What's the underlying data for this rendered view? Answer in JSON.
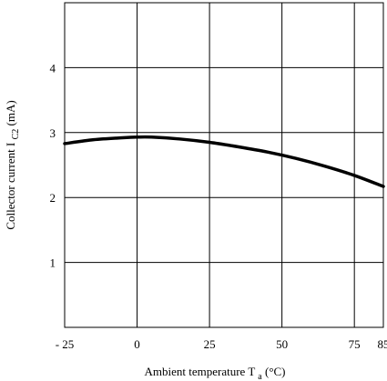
{
  "chart_data": {
    "type": "line",
    "title": "",
    "xlabel": "Ambient temperature T",
    "xlabel_sub": "a",
    "xlabel_unit": "(°C)",
    "ylabel": "Collector current I",
    "ylabel_sub": "C2",
    "ylabel_unit": "(mA)",
    "xlim": [
      -25,
      85
    ],
    "ylim": [
      0,
      5
    ],
    "grid": true,
    "x_ticks": [
      {
        "value": -25,
        "label": "- 25"
      },
      {
        "value": 0,
        "label": "0"
      },
      {
        "value": 25,
        "label": "25"
      },
      {
        "value": 50,
        "label": "50"
      },
      {
        "value": 75,
        "label": "75"
      },
      {
        "value": 85,
        "label": "85"
      }
    ],
    "y_ticks": [
      {
        "value": 1,
        "label": "1"
      },
      {
        "value": 2,
        "label": "2"
      },
      {
        "value": 3,
        "label": "3"
      },
      {
        "value": 4,
        "label": "4"
      }
    ],
    "series": [
      {
        "x": [
          -25,
          -15,
          -5,
          0,
          5,
          15,
          25,
          35,
          45,
          55,
          65,
          75,
          85
        ],
        "y": [
          2.83,
          2.89,
          2.92,
          2.93,
          2.93,
          2.9,
          2.85,
          2.78,
          2.7,
          2.6,
          2.48,
          2.34,
          2.17
        ]
      }
    ]
  }
}
